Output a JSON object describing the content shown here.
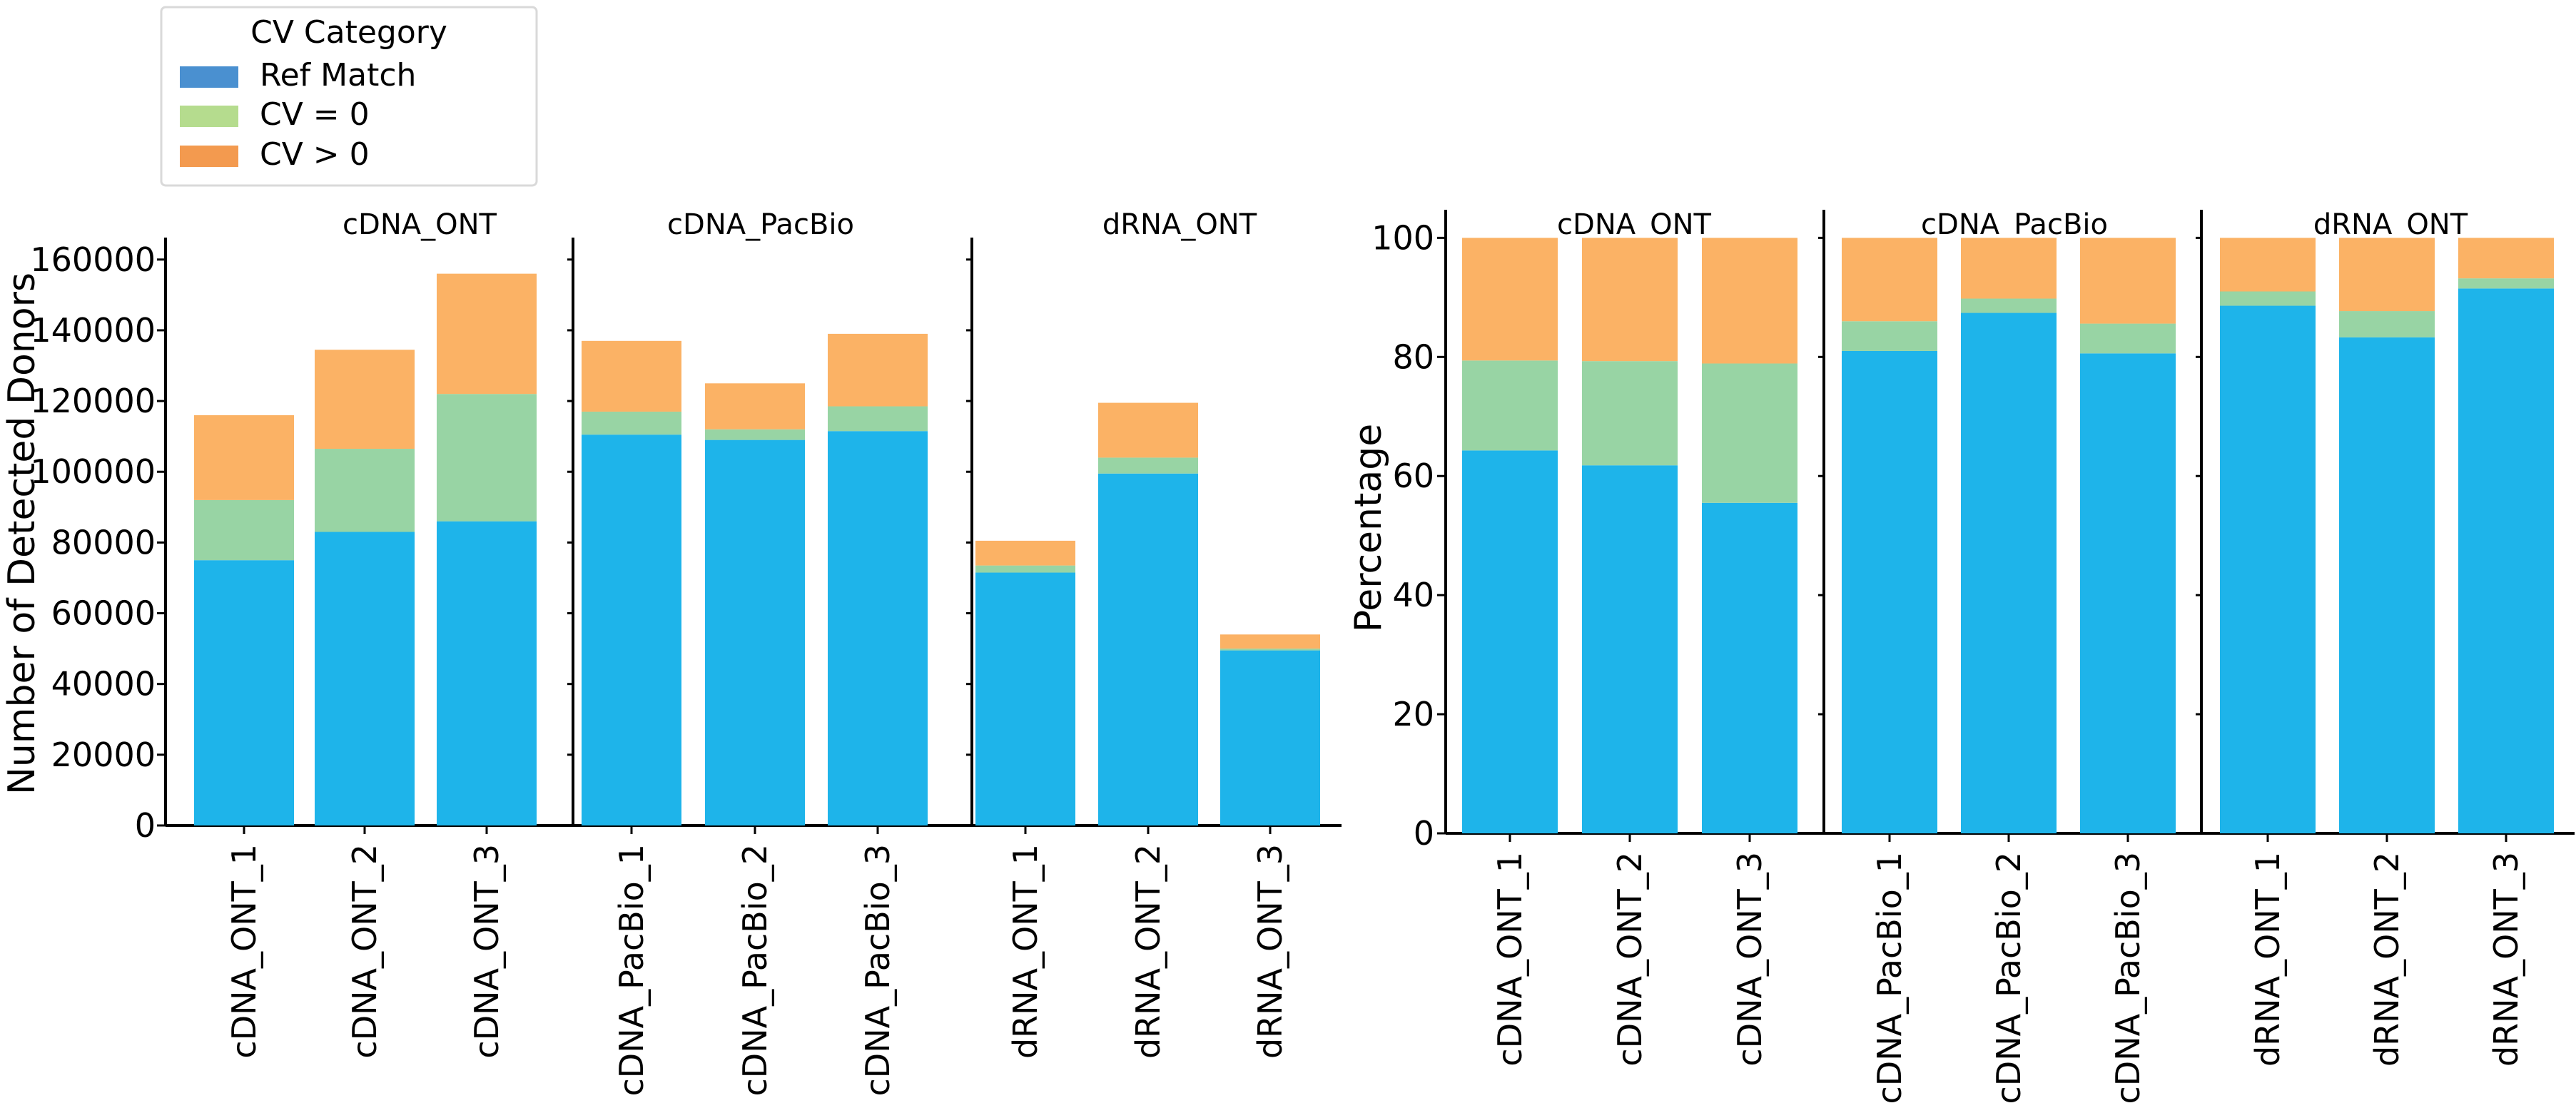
{
  "legend": {
    "title": "CV Category",
    "entries": [
      {
        "label": "Ref Match",
        "color": "#4a90d0"
      },
      {
        "label": "CV = 0",
        "color": "#b5dc8e"
      },
      {
        "label": "CV > 0",
        "color": "#f39a4f"
      }
    ]
  },
  "chart_data": [
    {
      "type": "bar",
      "stacked": true,
      "ylabel": "Number of Detected Donors",
      "ylim": [
        0,
        165000
      ],
      "yticks": [
        0,
        20000,
        40000,
        60000,
        80000,
        100000,
        120000,
        140000,
        160000
      ],
      "series_colors": [
        "#1eb4ea",
        "#98d4a4",
        "#fbb265"
      ],
      "facets": [
        {
          "title": "cDNA_ONT",
          "categories": [
            "cDNA_ONT_1",
            "cDNA_ONT_2",
            "cDNA_ONT_3"
          ],
          "series": [
            {
              "name": "Ref Match",
              "values": [
                75000,
                83000,
                86000
              ]
            },
            {
              "name": "CV = 0",
              "values": [
                17000,
                23500,
                36000
              ]
            },
            {
              "name": "CV > 0",
              "values": [
                24000,
                28000,
                34000
              ]
            }
          ]
        },
        {
          "title": "cDNA_PacBio",
          "categories": [
            "cDNA_PacBio_1",
            "cDNA_PacBio_2",
            "cDNA_PacBio_3"
          ],
          "series": [
            {
              "name": "Ref Match",
              "values": [
                110500,
                109000,
                111500
              ]
            },
            {
              "name": "CV = 0",
              "values": [
                6500,
                3000,
                7000
              ]
            },
            {
              "name": "CV > 0",
              "values": [
                20000,
                13000,
                20500
              ]
            }
          ]
        },
        {
          "title": "dRNA_ONT",
          "categories": [
            "dRNA_ONT_1",
            "dRNA_ONT_2",
            "dRNA_ONT_3"
          ],
          "series": [
            {
              "name": "Ref Match",
              "values": [
                71500,
                99500,
                49500
              ]
            },
            {
              "name": "CV = 0",
              "values": [
                2000,
                4500,
                500
              ]
            },
            {
              "name": "CV > 0",
              "values": [
                7000,
                15500,
                4000
              ]
            }
          ]
        }
      ]
    },
    {
      "type": "bar",
      "stacked": true,
      "ylabel": "Percentage",
      "ylim": [
        0,
        104
      ],
      "yticks": [
        0,
        20,
        40,
        60,
        80,
        100
      ],
      "series_colors": [
        "#1eb4ea",
        "#98d4a4",
        "#fbb265"
      ],
      "facets": [
        {
          "title": "cDNA_ONT",
          "categories": [
            "cDNA_ONT_1",
            "cDNA_ONT_2",
            "cDNA_ONT_3"
          ],
          "series": [
            {
              "name": "Ref Match",
              "values": [
                64.3,
                61.8,
                55.5
              ]
            },
            {
              "name": "CV = 0",
              "values": [
                15.1,
                17.5,
                23.4
              ]
            },
            {
              "name": "CV > 0",
              "values": [
                20.6,
                20.7,
                21.1
              ]
            }
          ]
        },
        {
          "title": "cDNA_PacBio",
          "categories": [
            "cDNA_PacBio_1",
            "cDNA_PacBio_2",
            "cDNA_PacBio_3"
          ],
          "series": [
            {
              "name": "Ref Match",
              "values": [
                81.0,
                87.4,
                80.6
              ]
            },
            {
              "name": "CV = 0",
              "values": [
                5.0,
                2.4,
                5.0
              ]
            },
            {
              "name": "CV > 0",
              "values": [
                14.0,
                10.2,
                14.4
              ]
            }
          ]
        },
        {
          "title": "dRNA_ONT",
          "categories": [
            "dRNA_ONT_1",
            "dRNA_ONT_2",
            "dRNA_ONT_3"
          ],
          "series": [
            {
              "name": "Ref Match",
              "values": [
                88.6,
                83.3,
                91.5
              ]
            },
            {
              "name": "CV = 0",
              "values": [
                2.4,
                4.4,
                1.7
              ]
            },
            {
              "name": "CV > 0",
              "values": [
                9.0,
                12.3,
                6.8
              ]
            }
          ]
        }
      ]
    }
  ]
}
